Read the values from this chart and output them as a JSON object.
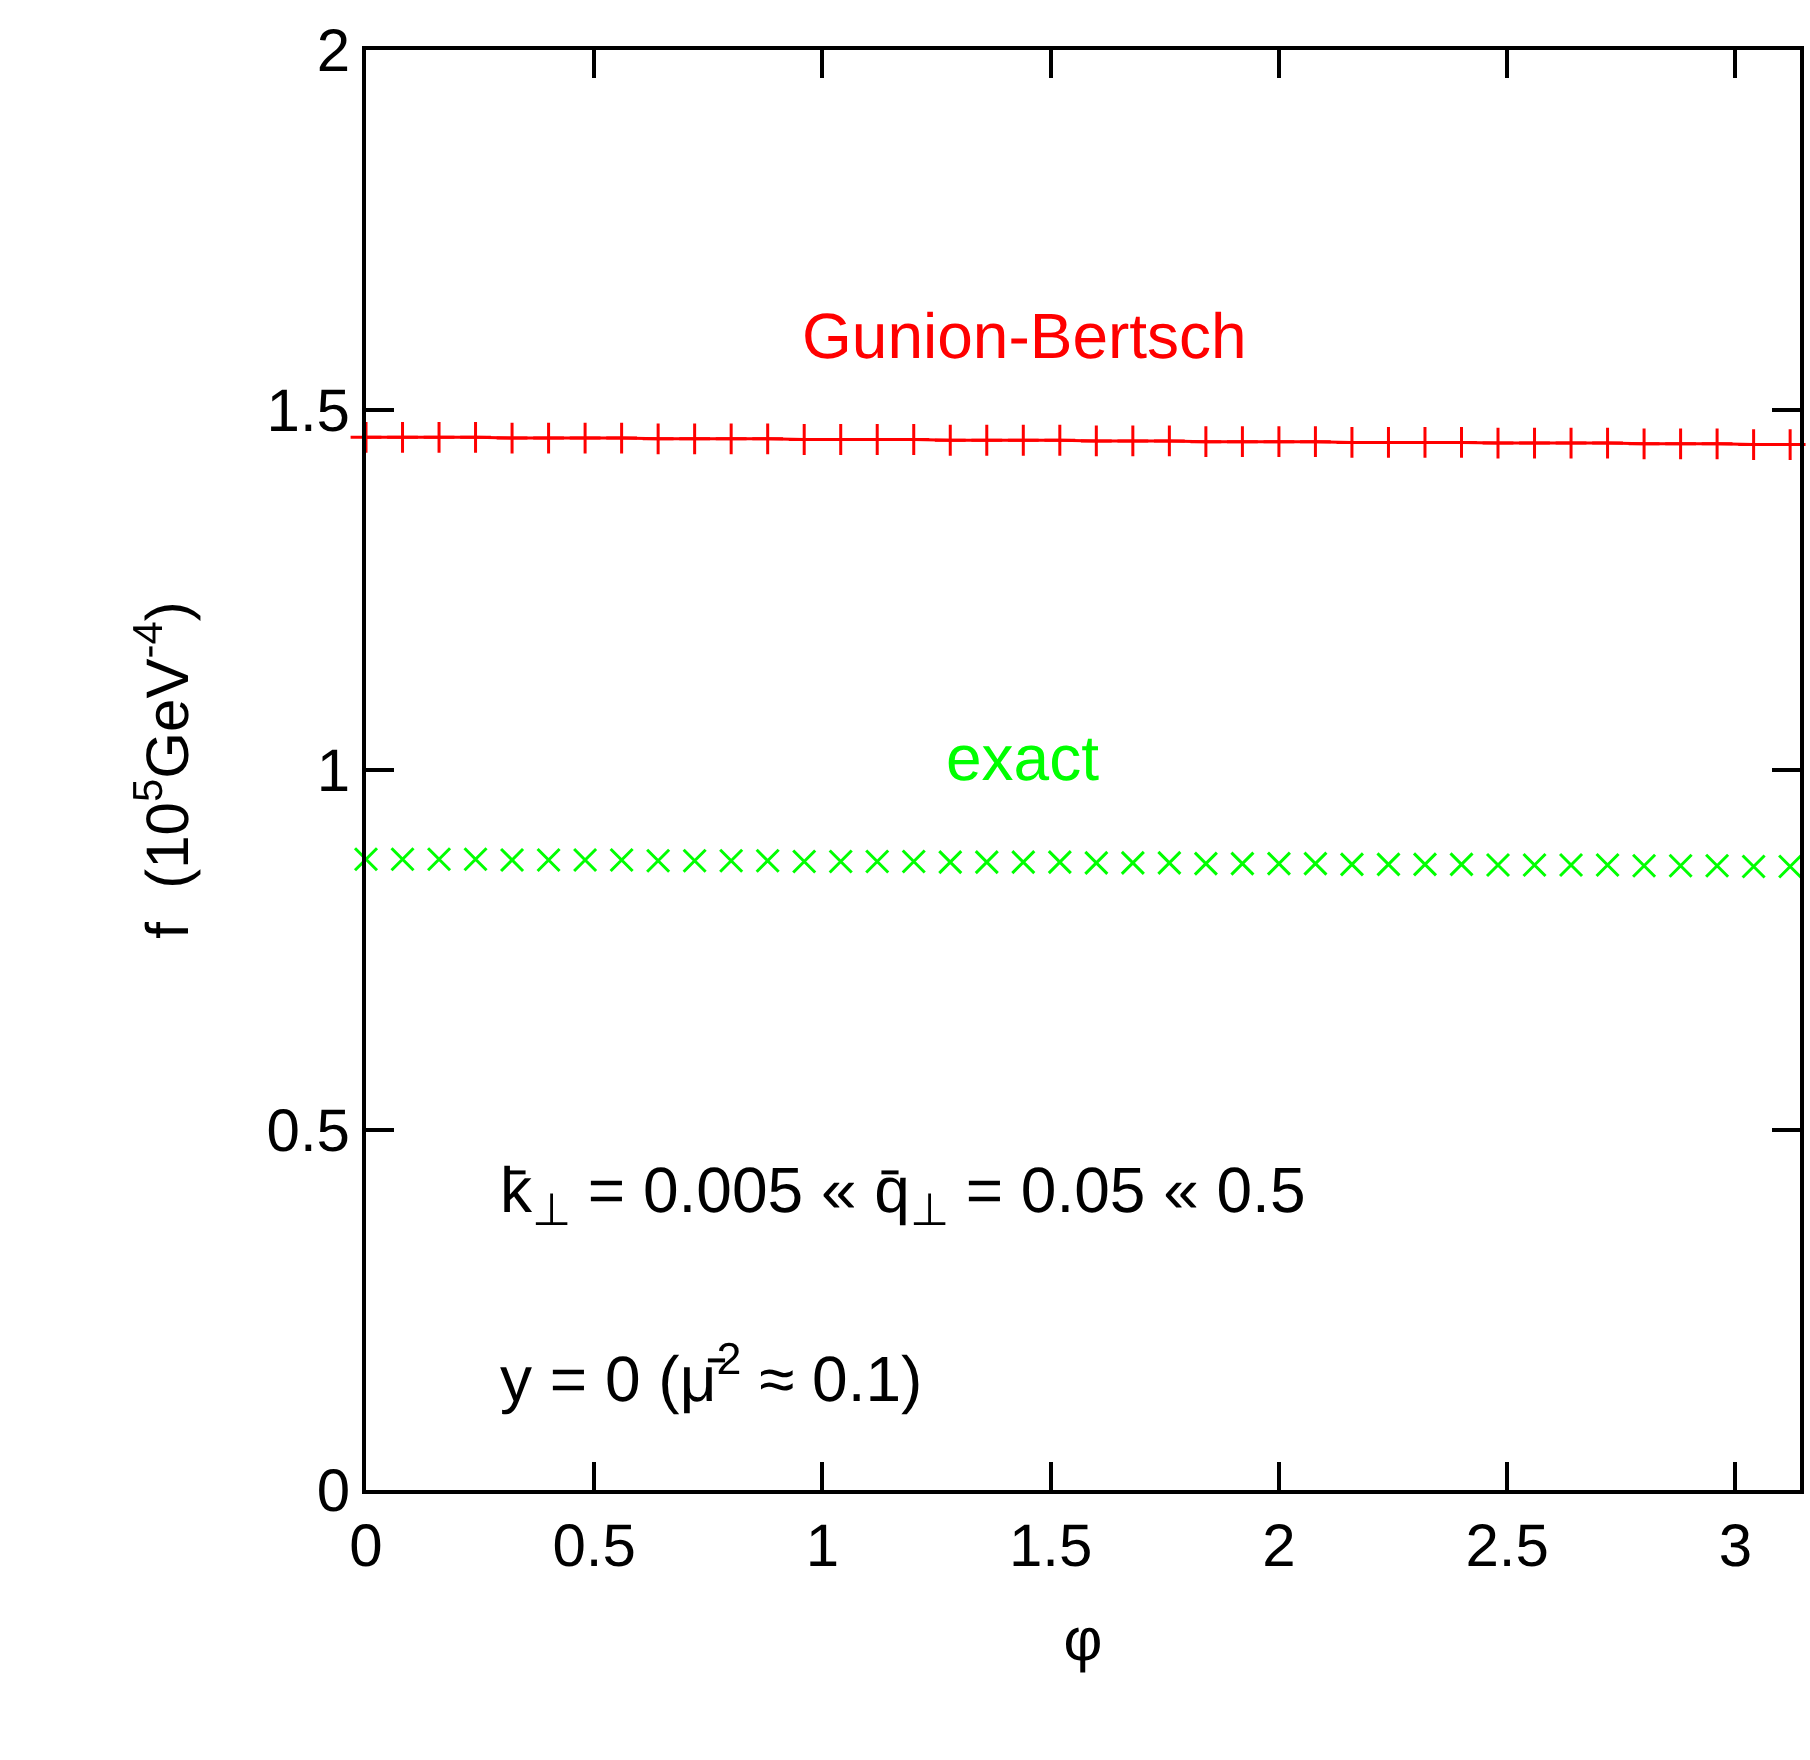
{
  "chart_data": {
    "type": "line",
    "xlabel": "φ",
    "ylabel": "f  (10$^{5}$GeV$^{-4}$)",
    "x": [
      0,
      0.08,
      0.16,
      0.24,
      0.32,
      0.4,
      0.48,
      0.56,
      0.64,
      0.72,
      0.8,
      0.88,
      0.96,
      1.04,
      1.12,
      1.2,
      1.28,
      1.36,
      1.44,
      1.52,
      1.6,
      1.68,
      1.76,
      1.84,
      1.92,
      2.0,
      2.08,
      2.16,
      2.24,
      2.32,
      2.4,
      2.48,
      2.56,
      2.64,
      2.72,
      2.8,
      2.88,
      2.96,
      3.04,
      3.12
    ],
    "series": [
      {
        "name": "Gunion-Bertsch",
        "color": "#ff0000",
        "marker": "cross",
        "values": [
          1.462,
          1.462,
          1.462,
          1.462,
          1.461,
          1.461,
          1.461,
          1.461,
          1.46,
          1.46,
          1.46,
          1.46,
          1.459,
          1.459,
          1.459,
          1.459,
          1.458,
          1.458,
          1.458,
          1.458,
          1.457,
          1.457,
          1.457,
          1.456,
          1.456,
          1.456,
          1.456,
          1.455,
          1.455,
          1.455,
          1.455,
          1.454,
          1.454,
          1.454,
          1.454,
          1.453,
          1.453,
          1.453,
          1.452,
          1.452
        ]
      },
      {
        "name": "exact",
        "color": "#00ff00",
        "type": "scatter",
        "marker": "cross",
        "values": [
          0.876,
          0.876,
          0.876,
          0.876,
          0.875,
          0.875,
          0.875,
          0.875,
          0.874,
          0.874,
          0.874,
          0.874,
          0.873,
          0.873,
          0.873,
          0.873,
          0.872,
          0.872,
          0.872,
          0.872,
          0.871,
          0.871,
          0.871,
          0.87,
          0.87,
          0.87,
          0.87,
          0.869,
          0.869,
          0.869,
          0.869,
          0.868,
          0.868,
          0.868,
          0.868,
          0.867,
          0.867,
          0.867,
          0.866,
          0.866
        ]
      }
    ],
    "xlim": [
      0,
      3.1416
    ],
    "xticks": [
      0,
      0.5,
      1,
      1.5,
      2,
      2.5,
      3
    ],
    "ylim": [
      0,
      2
    ],
    "yticks": [
      0,
      0.5,
      1,
      1.5,
      2
    ],
    "annotations": [
      "k̄$_{⊥}$ = 0.005 « q̄$_{⊥}$ = 0.05 « 0.5",
      "y = 0 (μ̄$^{2}$ ≈ 0.1)"
    ]
  }
}
